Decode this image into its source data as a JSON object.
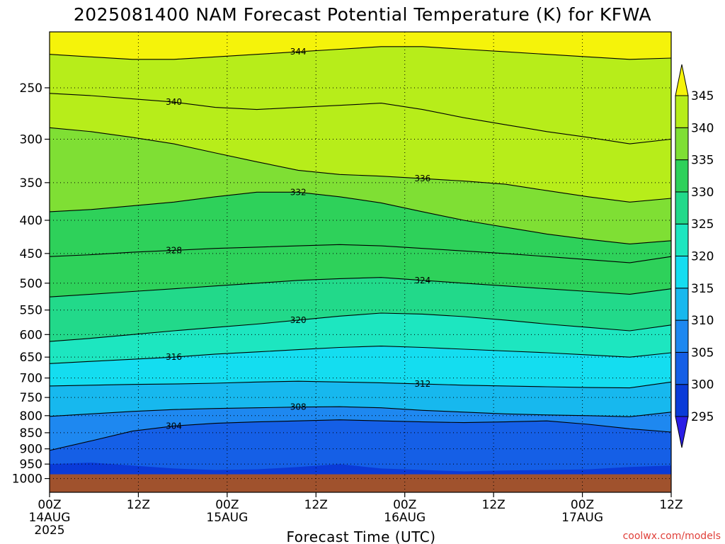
{
  "chart_data": {
    "type": "heatmap",
    "title": "2025081400 NAM Forecast Potential Temperature (K) for KFWA",
    "xlabel": "Forecast Time (UTC)",
    "ylabel": "",
    "y_scale": "log",
    "y_inverted": true,
    "y_ticks": [
      250,
      300,
      350,
      400,
      450,
      500,
      550,
      600,
      650,
      700,
      750,
      800,
      850,
      900,
      950,
      1000
    ],
    "ylim": [
      200,
      1050
    ],
    "x_ticks": [
      {
        "hour": 0,
        "label": "00Z",
        "sub": "14AUG",
        "sub2": "2025"
      },
      {
        "hour": 12,
        "label": "12Z",
        "sub": "",
        "sub2": ""
      },
      {
        "hour": 24,
        "label": "00Z",
        "sub": "15AUG",
        "sub2": ""
      },
      {
        "hour": 36,
        "label": "12Z",
        "sub": "",
        "sub2": ""
      },
      {
        "hour": 48,
        "label": "00Z",
        "sub": "16AUG",
        "sub2": ""
      },
      {
        "hour": 60,
        "label": "12Z",
        "sub": "",
        "sub2": ""
      },
      {
        "hour": 72,
        "label": "00Z",
        "sub": "17AUG",
        "sub2": ""
      },
      {
        "hour": 84,
        "label": "12Z",
        "sub": "",
        "sub2": ""
      }
    ],
    "xlim": [
      0,
      84
    ],
    "colorbar": {
      "levels": [
        295,
        300,
        305,
        310,
        315,
        320,
        325,
        330,
        335,
        340,
        345
      ],
      "colors": [
        "#2a1ee6",
        "#0a3bd8",
        "#155fe6",
        "#1e88f0",
        "#17b8ee",
        "#14ddf0",
        "#1de6c0",
        "#22d98a",
        "#2ed15a",
        "#7fdf34",
        "#b7ed1a",
        "#f5f30a"
      ]
    },
    "isotherms": [
      {
        "label": "304",
        "pressure": [
          905,
          875,
          845,
          830,
          822,
          818,
          815,
          812,
          815,
          818,
          820,
          818,
          815,
          825,
          838,
          848
        ]
      },
      {
        "label": "308",
        "pressure": [
          802,
          795,
          788,
          783,
          780,
          778,
          776,
          775,
          778,
          785,
          790,
          795,
          798,
          800,
          803,
          790
        ]
      },
      {
        "label": "312",
        "pressure": [
          720,
          718,
          716,
          715,
          713,
          710,
          708,
          710,
          712,
          715,
          718,
          720,
          722,
          724,
          725,
          710
        ]
      },
      {
        "label": "316",
        "pressure": [
          665,
          660,
          655,
          650,
          643,
          638,
          633,
          628,
          625,
          628,
          632,
          636,
          640,
          645,
          650,
          640
        ]
      },
      {
        "label": "320",
        "pressure": [
          615,
          608,
          600,
          592,
          585,
          578,
          570,
          562,
          556,
          558,
          563,
          570,
          578,
          585,
          592,
          580
        ]
      },
      {
        "label": "324",
        "pressure": [
          525,
          520,
          515,
          510,
          505,
          500,
          495,
          492,
          490,
          495,
          500,
          505,
          510,
          515,
          520,
          510
        ]
      },
      {
        "label": "328",
        "pressure": [
          455,
          452,
          448,
          445,
          442,
          440,
          438,
          436,
          438,
          442,
          446,
          450,
          455,
          460,
          465,
          455
        ]
      },
      {
        "label": "332",
        "pressure": [
          388,
          385,
          380,
          375,
          368,
          362,
          362,
          368,
          376,
          388,
          400,
          410,
          420,
          428,
          435,
          430
        ]
      },
      {
        "label": "336",
        "pressure": [
          288,
          292,
          298,
          305,
          315,
          325,
          335,
          340,
          342,
          345,
          348,
          352,
          360,
          368,
          375,
          370
        ]
      },
      {
        "label": "340",
        "pressure": [
          255,
          257,
          260,
          263,
          268,
          270,
          268,
          266,
          264,
          270,
          278,
          285,
          292,
          298,
          305,
          300
        ]
      },
      {
        "label": "344",
        "pressure": [
          222,
          224,
          226,
          226,
          224,
          222,
          220,
          218,
          216,
          216,
          218,
          220,
          222,
          224,
          226,
          225
        ]
      }
    ],
    "isotherm_hours": [
      0,
      5.6,
      11.2,
      16.8,
      22.4,
      28,
      33.6,
      39.2,
      44.8,
      50.4,
      56,
      61.6,
      67.2,
      72.8,
      78.4,
      84
    ],
    "credit": "coolwx.com/models"
  }
}
